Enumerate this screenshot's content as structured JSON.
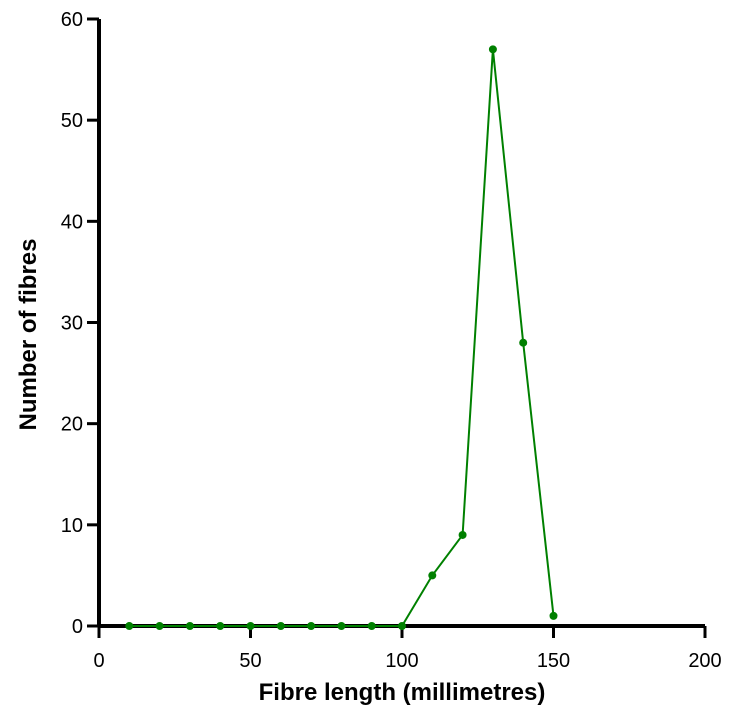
{
  "chart_data": {
    "type": "line",
    "title": "",
    "xlabel": "Fibre length (millimetres)",
    "ylabel": "Number of fibres",
    "xlim": [
      0,
      200
    ],
    "ylim": [
      0,
      60
    ],
    "xticks": [
      0,
      50,
      100,
      150,
      200
    ],
    "yticks": [
      0,
      10,
      20,
      30,
      40,
      50,
      60
    ],
    "grid": false,
    "legend": "none",
    "series": [
      {
        "color": "#008000",
        "x": [
          10,
          20,
          30,
          40,
          50,
          60,
          70,
          80,
          90,
          100,
          110,
          120,
          130,
          140,
          150
        ],
        "y": [
          0,
          0,
          0,
          0,
          0,
          0,
          0,
          0,
          0,
          0,
          5,
          9,
          57,
          28,
          1
        ]
      }
    ]
  }
}
